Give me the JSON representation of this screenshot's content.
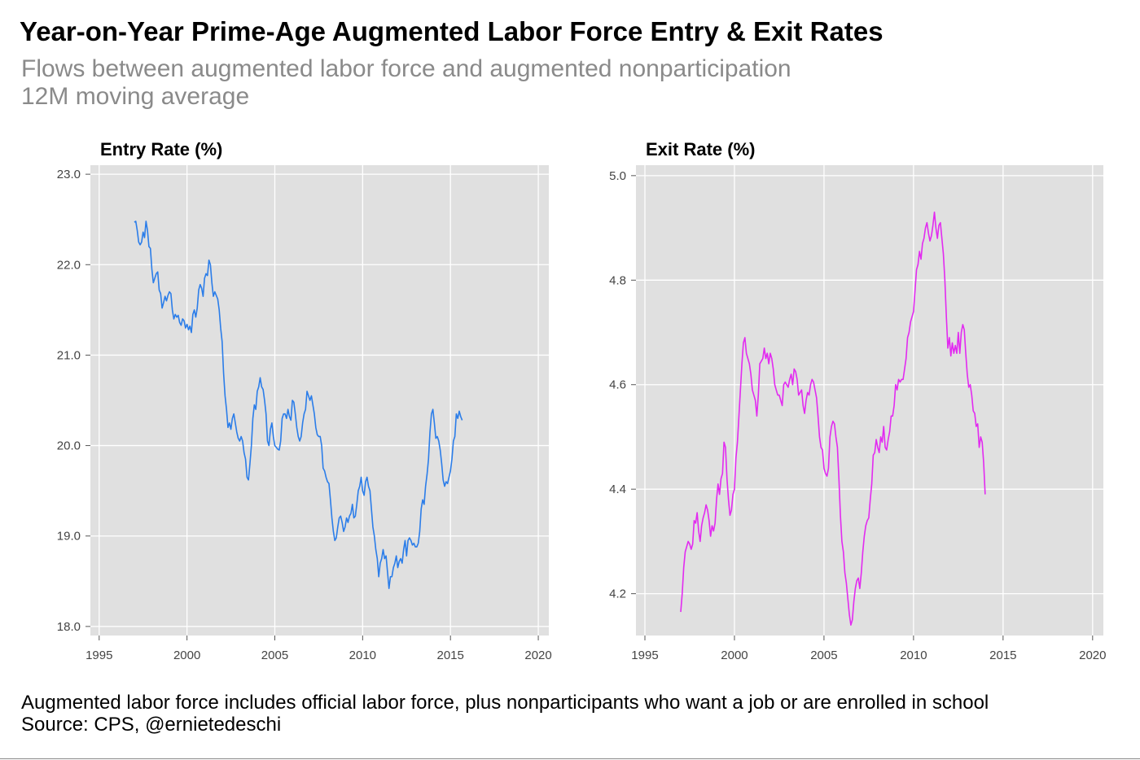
{
  "title": "Year-on-Year Prime-Age Augmented Labor Force Entry & Exit Rates",
  "subtitle_line1": "Flows between augmented labor force and augmented nonparticipation",
  "subtitle_line2": "12M moving average",
  "footnote_line1": "Augmented labor force includes official labor force, plus nonparticipants who want a job or are enrolled in school",
  "footnote_line2": "Source: CPS, @ernietedeschi",
  "chart_data": [
    {
      "type": "line",
      "title": "Entry Rate (%)",
      "color": "#2b7de9",
      "panel_bg": "#e0e0e0",
      "grid": true,
      "xlim": [
        1994.5,
        2020.6
      ],
      "ylim": [
        17.9,
        23.1
      ],
      "x_ticks": [
        1995,
        2000,
        2005,
        2010,
        2015,
        2020
      ],
      "y_ticks": [
        18.0,
        19.0,
        20.0,
        21.0,
        22.0,
        23.0
      ],
      "y_tick_labels": [
        "18.0",
        "19.0",
        "20.0",
        "21.0",
        "22.0",
        "23.0"
      ],
      "x_start": 1997.0,
      "x_step": 0.0833333,
      "values": [
        22.47,
        22.48,
        22.38,
        22.25,
        22.22,
        22.25,
        22.36,
        22.3,
        22.48,
        22.38,
        22.2,
        22.18,
        21.95,
        21.8,
        21.85,
        21.9,
        21.92,
        21.72,
        21.68,
        21.52,
        21.58,
        21.65,
        21.6,
        21.66,
        21.7,
        21.68,
        21.5,
        21.4,
        21.45,
        21.42,
        21.44,
        21.36,
        21.33,
        21.4,
        21.38,
        21.3,
        21.34,
        21.28,
        21.32,
        21.25,
        21.45,
        21.5,
        21.42,
        21.52,
        21.72,
        21.78,
        21.74,
        21.65,
        21.85,
        21.9,
        21.88,
        22.05,
        22.0,
        21.8,
        21.65,
        21.7,
        21.66,
        21.62,
        21.5,
        21.3,
        21.15,
        20.8,
        20.55,
        20.4,
        20.2,
        20.25,
        20.18,
        20.3,
        20.35,
        20.25,
        20.15,
        20.08,
        20.05,
        20.1,
        20.05,
        19.92,
        19.85,
        19.65,
        19.62,
        19.8,
        20.0,
        20.3,
        20.45,
        20.4,
        20.6,
        20.65,
        20.75,
        20.65,
        20.62,
        20.5,
        20.35,
        20.05,
        20.0,
        20.18,
        20.25,
        20.1,
        20.0,
        19.98,
        19.96,
        19.95,
        20.05,
        20.3,
        20.35,
        20.35,
        20.3,
        20.4,
        20.32,
        20.28,
        20.5,
        20.48,
        20.35,
        20.2,
        20.1,
        20.05,
        20.1,
        20.25,
        20.35,
        20.4,
        20.6,
        20.55,
        20.5,
        20.55,
        20.45,
        20.35,
        20.2,
        20.12,
        20.1,
        20.1,
        20.0,
        19.75,
        19.72,
        19.65,
        19.6,
        19.58,
        19.4,
        19.2,
        19.05,
        18.95,
        18.98,
        19.1,
        19.2,
        19.22,
        19.15,
        19.05,
        19.1,
        19.2,
        19.15,
        19.22,
        19.25,
        19.35,
        19.2,
        19.22,
        19.35,
        19.5,
        19.55,
        19.65,
        19.5,
        19.45,
        19.6,
        19.65,
        19.55,
        19.5,
        19.3,
        19.1,
        19.0,
        18.85,
        18.75,
        18.55,
        18.7,
        18.75,
        18.85,
        18.75,
        18.78,
        18.6,
        18.42,
        18.55,
        18.55,
        18.65,
        18.7,
        18.78,
        18.65,
        18.72,
        18.75,
        18.7,
        18.85,
        18.95,
        18.78,
        18.95,
        18.98,
        18.95,
        18.9,
        18.92,
        18.88,
        18.88,
        18.92,
        19.05,
        19.3,
        19.4,
        19.35,
        19.55,
        19.68,
        19.85,
        20.15,
        20.35,
        20.4,
        20.25,
        20.08,
        20.1,
        20.05,
        19.95,
        19.8,
        19.62,
        19.55,
        19.6,
        19.58,
        19.65,
        19.72,
        19.85,
        20.05,
        20.1,
        20.35,
        20.3,
        20.38,
        20.32,
        20.28
      ]
    },
    {
      "type": "line",
      "title": "Exit Rate (%)",
      "color": "#e22bf0",
      "panel_bg": "#e0e0e0",
      "grid": true,
      "xlim": [
        1994.5,
        2020.6
      ],
      "ylim": [
        4.12,
        5.02
      ],
      "x_ticks": [
        1995,
        2000,
        2005,
        2010,
        2015,
        2020
      ],
      "y_ticks": [
        4.2,
        4.4,
        4.6,
        4.8,
        5.0
      ],
      "y_tick_labels": [
        "4.2",
        "4.4",
        "4.6",
        "4.8",
        "5.0"
      ],
      "x_start": 1997.0,
      "x_step": 0.0833333,
      "values": [
        4.165,
        4.2,
        4.25,
        4.28,
        4.29,
        4.3,
        4.295,
        4.285,
        4.295,
        4.34,
        4.335,
        4.355,
        4.32,
        4.3,
        4.33,
        4.345,
        4.355,
        4.37,
        4.36,
        4.34,
        4.31,
        4.33,
        4.32,
        4.335,
        4.38,
        4.41,
        4.39,
        4.42,
        4.43,
        4.49,
        4.48,
        4.42,
        4.38,
        4.35,
        4.36,
        4.39,
        4.4,
        4.46,
        4.49,
        4.54,
        4.59,
        4.64,
        4.68,
        4.69,
        4.66,
        4.65,
        4.64,
        4.62,
        4.59,
        4.58,
        4.57,
        4.54,
        4.58,
        4.64,
        4.645,
        4.65,
        4.67,
        4.65,
        4.66,
        4.64,
        4.66,
        4.65,
        4.63,
        4.6,
        4.59,
        4.58,
        4.58,
        4.57,
        4.56,
        4.6,
        4.605,
        4.6,
        4.595,
        4.61,
        4.62,
        4.6,
        4.63,
        4.625,
        4.61,
        4.58,
        4.585,
        4.59,
        4.56,
        4.545,
        4.57,
        4.585,
        4.58,
        4.6,
        4.61,
        4.605,
        4.59,
        4.575,
        4.54,
        4.5,
        4.48,
        4.475,
        4.44,
        4.43,
        4.425,
        4.44,
        4.5,
        4.52,
        4.53,
        4.525,
        4.5,
        4.48,
        4.42,
        4.35,
        4.3,
        4.28,
        4.24,
        4.22,
        4.19,
        4.16,
        4.14,
        4.15,
        4.185,
        4.21,
        4.225,
        4.23,
        4.21,
        4.24,
        4.28,
        4.31,
        4.33,
        4.34,
        4.345,
        4.38,
        4.41,
        4.465,
        4.47,
        4.495,
        4.48,
        4.47,
        4.5,
        4.49,
        4.52,
        4.48,
        4.475,
        4.495,
        4.51,
        4.54,
        4.54,
        4.56,
        4.6,
        4.59,
        4.61,
        4.605,
        4.61,
        4.61,
        4.63,
        4.65,
        4.69,
        4.7,
        4.72,
        4.73,
        4.74,
        4.78,
        4.82,
        4.83,
        4.855,
        4.84,
        4.87,
        4.88,
        4.9,
        4.91,
        4.89,
        4.875,
        4.885,
        4.905,
        4.93,
        4.9,
        4.88,
        4.905,
        4.91,
        4.88,
        4.85,
        4.8,
        4.73,
        4.67,
        4.69,
        4.655,
        4.68,
        4.66,
        4.675,
        4.66,
        4.7,
        4.66,
        4.7,
        4.715,
        4.705,
        4.66,
        4.62,
        4.595,
        4.6,
        4.58,
        4.55,
        4.545,
        4.52,
        4.525,
        4.48,
        4.5,
        4.49,
        4.45,
        4.39
      ]
    }
  ]
}
